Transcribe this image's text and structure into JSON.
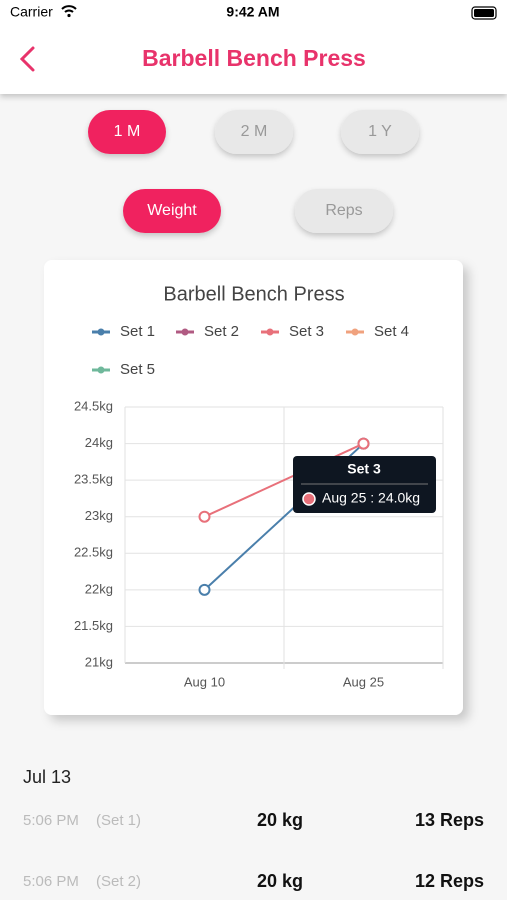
{
  "status_bar": {
    "carrier": "Carrier",
    "time": "9:42 AM"
  },
  "header": {
    "title": "Barbell Bench Press"
  },
  "range_tabs": [
    "1 M",
    "2 M",
    "1 Y"
  ],
  "metric_tabs": [
    "Weight",
    "Reps"
  ],
  "chart_data": {
    "type": "line",
    "title": "Barbell Bench Press",
    "categories": [
      "Aug 10",
      "Aug 25"
    ],
    "series": [
      {
        "name": "Set 1",
        "color": "#4a7fab",
        "values": [
          22,
          24
        ]
      },
      {
        "name": "Set 2",
        "color": "#b05a82",
        "values": [
          null,
          null
        ]
      },
      {
        "name": "Set 3",
        "color": "#e8707a",
        "values": [
          23,
          24
        ]
      },
      {
        "name": "Set 4",
        "color": "#f0a27e",
        "values": [
          null,
          null
        ]
      },
      {
        "name": "Set 5",
        "color": "#6fb89b",
        "values": [
          null,
          null
        ]
      }
    ],
    "ylim": [
      21,
      24.5
    ],
    "yticks": [
      {
        "value": 21,
        "label": "21kg"
      },
      {
        "value": 21.5,
        "label": "21.5kg"
      },
      {
        "value": 22,
        "label": "22kg"
      },
      {
        "value": 22.5,
        "label": "22.5kg"
      },
      {
        "value": 23,
        "label": "23kg"
      },
      {
        "value": 23.5,
        "label": "23.5kg"
      },
      {
        "value": 24,
        "label": "24kg"
      },
      {
        "value": 24.5,
        "label": "24.5kg"
      }
    ],
    "grid": true,
    "tooltip": {
      "title": "Set 3",
      "text": "Aug 25 : 24.0kg"
    }
  },
  "history": {
    "date": "Jul 13",
    "rows": [
      {
        "time": "5:06 PM",
        "set": "(Set 1)",
        "weight": "20 kg",
        "reps": "13 Reps"
      },
      {
        "time": "5:06 PM",
        "set": "(Set 2)",
        "weight": "20 kg",
        "reps": "12 Reps"
      }
    ]
  }
}
